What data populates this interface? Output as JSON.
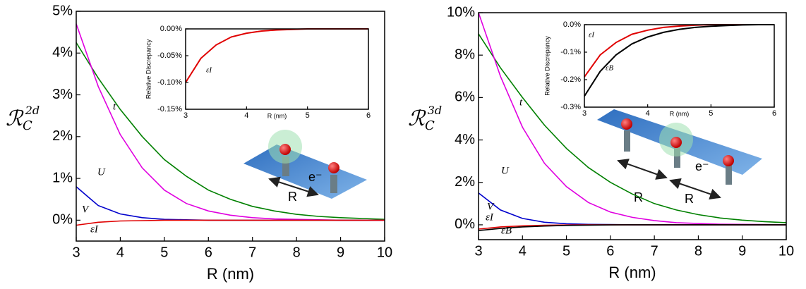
{
  "chart_data": [
    {
      "type": "line",
      "xlabel": "R (nm)",
      "ylabel": {
        "base": "ℛ",
        "sub": "C",
        "sup": "2d"
      },
      "x": [
        3,
        3.5,
        4,
        4.5,
        5,
        5.5,
        6,
        6.5,
        7,
        7.5,
        8,
        8.5,
        9,
        9.5,
        10
      ],
      "xlim": [
        3,
        10
      ],
      "xticks": [
        3,
        4,
        5,
        6,
        7,
        8,
        9,
        10
      ],
      "ylim": [
        -0.5,
        5
      ],
      "yticks": [
        {
          "value": 0,
          "label": "0%"
        },
        {
          "value": 1,
          "label": "1%"
        },
        {
          "value": 2,
          "label": "2%"
        },
        {
          "value": 3,
          "label": "3%"
        },
        {
          "value": 4,
          "label": "4%"
        },
        {
          "value": 5,
          "label": "5%"
        }
      ],
      "series": [
        {
          "name": "t",
          "color": "#008000",
          "values": [
            4.25,
            3.4,
            2.65,
            2.0,
            1.45,
            1.05,
            0.72,
            0.5,
            0.33,
            0.22,
            0.14,
            0.09,
            0.06,
            0.04,
            0.02
          ]
        },
        {
          "name": "U",
          "color": "#e000e0",
          "values": [
            4.7,
            3.2,
            2.05,
            1.25,
            0.72,
            0.4,
            0.22,
            0.12,
            0.06,
            0.03,
            0.02,
            0.01,
            0,
            0,
            0
          ]
        },
        {
          "name": "V",
          "color": "#0000cc",
          "values": [
            0.8,
            0.35,
            0.15,
            0.06,
            0.02,
            0.01,
            0,
            0,
            0,
            0,
            0,
            0,
            0,
            0,
            0
          ]
        },
        {
          "name": "εI",
          "color": "#e00000",
          "values": [
            -0.12,
            -0.05,
            -0.02,
            -0.01,
            0,
            0,
            0,
            0,
            0,
            0,
            0,
            0,
            0,
            0,
            0
          ]
        }
      ],
      "annotations": [
        "e⁻",
        "R"
      ]
    },
    {
      "type": "line",
      "xlabel": "R (nm)",
      "ylabel": "Relative Discrepancy",
      "x": [
        3,
        3.25,
        3.5,
        3.75,
        4,
        4.25,
        4.5,
        4.75,
        5,
        5.25,
        5.5,
        5.75,
        6
      ],
      "xlim": [
        3,
        6
      ],
      "xticks": [
        3,
        4,
        5,
        6
      ],
      "ylim": [
        -0.15,
        0
      ],
      "yticks": [
        {
          "value": 0,
          "label": "0.00%"
        },
        {
          "value": -0.05,
          "label": "-0.05%"
        },
        {
          "value": -0.1,
          "label": "-0.10%"
        },
        {
          "value": -0.15,
          "label": "-0.15%"
        }
      ],
      "series": [
        {
          "name": "εI",
          "color": "#e00000",
          "values": [
            -0.1,
            -0.055,
            -0.03,
            -0.015,
            -0.008,
            -0.004,
            -0.002,
            -0.001,
            0,
            0,
            0,
            0,
            0
          ]
        }
      ]
    },
    {
      "type": "line",
      "xlabel": "R (nm)",
      "ylabel": {
        "base": "ℛ",
        "sub": "C",
        "sup": "3d"
      },
      "x": [
        3,
        3.5,
        4,
        4.5,
        5,
        5.5,
        6,
        6.5,
        7,
        7.5,
        8,
        8.5,
        9,
        9.5,
        10
      ],
      "xlim": [
        3,
        10
      ],
      "xticks": [
        3,
        4,
        5,
        6,
        7,
        8,
        9,
        10
      ],
      "ylim": [
        -0.7,
        10
      ],
      "yticks": [
        {
          "value": 0,
          "label": "0%"
        },
        {
          "value": 2,
          "label": "2%"
        },
        {
          "value": 4,
          "label": "4%"
        },
        {
          "value": 6,
          "label": "6%"
        },
        {
          "value": 8,
          "label": "8%"
        },
        {
          "value": 10,
          "label": "10%"
        }
      ],
      "series": [
        {
          "name": "t",
          "color": "#008000",
          "values": [
            9.0,
            7.4,
            6.0,
            4.7,
            3.6,
            2.7,
            2.0,
            1.45,
            1.0,
            0.7,
            0.48,
            0.32,
            0.22,
            0.15,
            0.1
          ]
        },
        {
          "name": "U",
          "color": "#e000e0",
          "values": [
            10,
            7.0,
            4.6,
            2.9,
            1.8,
            1.05,
            0.6,
            0.35,
            0.2,
            0.1,
            0.06,
            0.03,
            0.02,
            0.01,
            0
          ]
        },
        {
          "name": "V",
          "color": "#0000cc",
          "values": [
            1.5,
            0.7,
            0.3,
            0.12,
            0.05,
            0.02,
            0.01,
            0,
            0,
            0,
            0,
            0,
            0,
            0,
            0
          ]
        },
        {
          "name": "εI",
          "color": "#e00000",
          "values": [
            -0.2,
            -0.1,
            -0.05,
            -0.02,
            -0.01,
            0,
            0,
            0,
            0,
            0,
            0,
            0,
            0,
            0,
            0
          ]
        },
        {
          "name": "εB",
          "color": "#000000",
          "values": [
            -0.27,
            -0.17,
            -0.1,
            -0.06,
            -0.03,
            -0.015,
            -0.005,
            0,
            0,
            0,
            0,
            0,
            0,
            0,
            0
          ]
        }
      ],
      "annotations": [
        "e⁻",
        "R",
        "R"
      ]
    },
    {
      "type": "line",
      "xlabel": "R (nm)",
      "ylabel": "Relative Discrepancy",
      "x": [
        3,
        3.25,
        3.5,
        3.75,
        4,
        4.25,
        4.5,
        4.75,
        5,
        5.25,
        5.5,
        5.75,
        6
      ],
      "xlim": [
        3,
        6
      ],
      "xticks": [
        3,
        4,
        5,
        6
      ],
      "ylim": [
        -0.3,
        0
      ],
      "yticks": [
        {
          "value": 0,
          "label": "0.0%"
        },
        {
          "value": -0.1,
          "label": "-0.1%"
        },
        {
          "value": -0.2,
          "label": "-0.2%"
        },
        {
          "value": -0.3,
          "label": "-0.3%"
        }
      ],
      "series": [
        {
          "name": "εI",
          "color": "#e00000",
          "values": [
            -0.19,
            -0.11,
            -0.065,
            -0.035,
            -0.02,
            -0.01,
            -0.005,
            -0.002,
            0,
            0,
            0,
            0,
            0
          ]
        },
        {
          "name": "εB",
          "color": "#000000",
          "values": [
            -0.26,
            -0.17,
            -0.11,
            -0.07,
            -0.045,
            -0.028,
            -0.017,
            -0.01,
            -0.006,
            -0.003,
            -0.001,
            0,
            0
          ]
        }
      ]
    }
  ]
}
